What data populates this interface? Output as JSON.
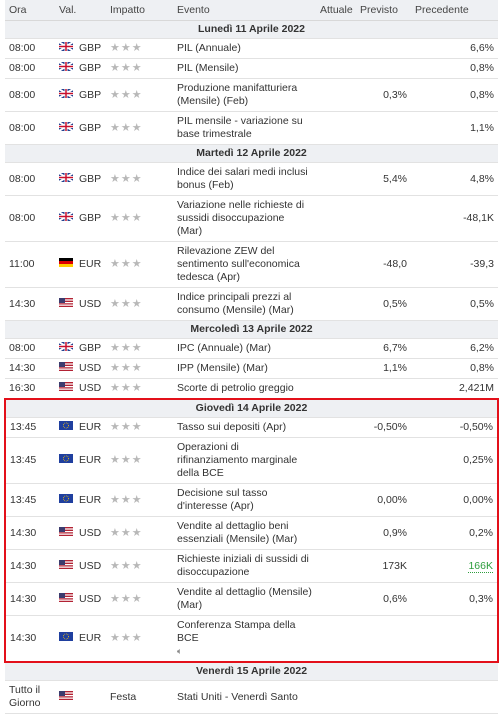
{
  "columns": [
    "Ora",
    "Val.",
    "Impatto",
    "Evento",
    "Attuale",
    "Previsto",
    "Precedente"
  ],
  "days": [
    {
      "title": "Lunedì 11 Aprile 2022",
      "events": [
        {
          "time": "08:00",
          "flag": "gb",
          "currency": "GBP",
          "event": "PIL (Annuale)",
          "precedente": "6,6%"
        },
        {
          "time": "08:00",
          "flag": "gb",
          "currency": "GBP",
          "event": "PIL (Mensile)",
          "precedente": "0,8%"
        },
        {
          "time": "08:00",
          "flag": "gb",
          "currency": "GBP",
          "event": "Produzione manifatturiera (Mensile) (Feb)",
          "previsto": "0,3%",
          "precedente": "0,8%"
        },
        {
          "time": "08:00",
          "flag": "gb",
          "currency": "GBP",
          "event": "PIL mensile - variazione su base trimestrale",
          "precedente": "1,1%"
        }
      ]
    },
    {
      "title": "Martedì 12 Aprile 2022",
      "events": [
        {
          "time": "08:00",
          "flag": "gb",
          "currency": "GBP",
          "event": "Indice dei salari medi inclusi bonus (Feb)",
          "previsto": "5,4%",
          "precedente": "4,8%"
        },
        {
          "time": "08:00",
          "flag": "gb",
          "currency": "GBP",
          "event": "Variazione nelle richieste di sussidi disoccupazione (Mar)",
          "precedente": "-48,1K"
        },
        {
          "time": "11:00",
          "flag": "de",
          "currency": "EUR",
          "event": "Rilevazione ZEW del sentimento sull'economica tedesca (Apr)",
          "previsto": "-48,0",
          "precedente": "-39,3"
        },
        {
          "time": "14:30",
          "flag": "us",
          "currency": "USD",
          "event": "Indice principali prezzi al consumo (Mensile) (Mar)",
          "previsto": "0,5%",
          "precedente": "0,5%"
        }
      ]
    },
    {
      "title": "Mercoledì 13 Aprile 2022",
      "events": [
        {
          "time": "08:00",
          "flag": "gb",
          "currency": "GBP",
          "event": "IPC (Annuale) (Mar)",
          "previsto": "6,7%",
          "precedente": "6,2%"
        },
        {
          "time": "14:30",
          "flag": "us",
          "currency": "USD",
          "event": "IPP (Mensile) (Mar)",
          "previsto": "1,1%",
          "precedente": "0,8%"
        },
        {
          "time": "16:30",
          "flag": "us",
          "currency": "USD",
          "event": "Scorte di petrolio greggio",
          "precedente": "2,421M"
        }
      ]
    },
    {
      "title": "Giovedì 14 Aprile 2022",
      "highlighted": true,
      "events": [
        {
          "time": "13:45",
          "flag": "eu",
          "currency": "EUR",
          "event": "Tasso sui depositi (Apr)",
          "previsto": "-0,50%",
          "precedente": "-0,50%"
        },
        {
          "time": "13:45",
          "flag": "eu",
          "currency": "EUR",
          "event": "Operazioni di rifinanziamento marginale della BCE",
          "precedente": "0,25%"
        },
        {
          "time": "13:45",
          "flag": "eu",
          "currency": "EUR",
          "event": "Decisione sul tasso d'interesse (Apr)",
          "previsto": "0,00%",
          "precedente": "0,00%"
        },
        {
          "time": "14:30",
          "flag": "us",
          "currency": "USD",
          "event": "Vendite al dettaglio beni essenziali (Mensile) (Mar)",
          "previsto": "0,9%",
          "precedente": "0,2%"
        },
        {
          "time": "14:30",
          "flag": "us",
          "currency": "USD",
          "event": "Richieste iniziali di sussidi di disoccupazione",
          "previsto": "173K",
          "precedente": "166K",
          "precedente_color": "#2e9e3e"
        },
        {
          "time": "14:30",
          "flag": "us",
          "currency": "USD",
          "event": "Vendite al dettaglio (Mensile) (Mar)",
          "previsto": "0,6%",
          "precedente": "0,3%"
        },
        {
          "time": "14:30",
          "flag": "eu",
          "currency": "EUR",
          "event": "Conferenza Stampa della BCE",
          "audio": true
        }
      ]
    },
    {
      "title": "Venerdì 15 Aprile 2022",
      "events": [
        {
          "time": "Tutto il Giorno",
          "flag": "us",
          "impact": "Festa",
          "event": "Stati Uniti - Venerdì Santo"
        }
      ]
    }
  ]
}
